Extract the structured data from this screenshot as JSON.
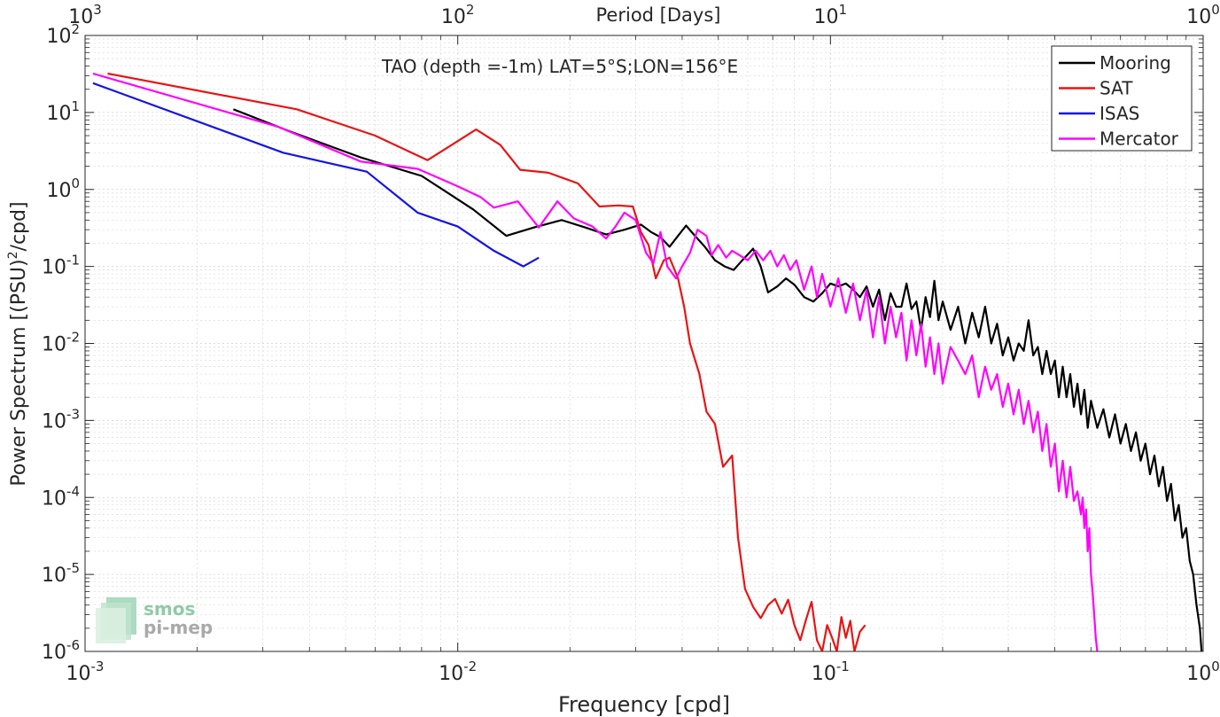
{
  "chart_data": {
    "type": "line",
    "title": "TAO (depth =-1m) LAT=5°S;LON=156°E",
    "xlabel": "Frequency [cpd]",
    "ylabel_main": "Power Spectrum [(PSU)",
    "ylabel_sup": "2",
    "ylabel_tail": "/cpd]",
    "top_xlabel": "Period [Days]",
    "x_scale": "log",
    "y_scale": "log",
    "xlim": [
      0.001,
      1
    ],
    "ylim": [
      1e-06,
      100
    ],
    "grid": true,
    "legend_position": "top-right",
    "x_ticks": [
      {
        "base": "10",
        "exp": "-3",
        "value": 0.001
      },
      {
        "base": "10",
        "exp": "-2",
        "value": 0.01
      },
      {
        "base": "10",
        "exp": "-1",
        "value": 0.1
      },
      {
        "base": "10",
        "exp": "0",
        "value": 1
      }
    ],
    "top_ticks": [
      {
        "base": "10",
        "exp": "3",
        "freq": 0.001
      },
      {
        "base": "10",
        "exp": "2",
        "freq": 0.01
      },
      {
        "base": "10",
        "exp": "1",
        "freq": 0.1
      },
      {
        "base": "10",
        "exp": "0",
        "freq": 1
      }
    ],
    "y_ticks": [
      {
        "base": "10",
        "exp": "2",
        "value": 100
      },
      {
        "base": "10",
        "exp": "1",
        "value": 10
      },
      {
        "base": "10",
        "exp": "0",
        "value": 1
      },
      {
        "base": "10",
        "exp": "-1",
        "value": 0.1
      },
      {
        "base": "10",
        "exp": "-2",
        "value": 0.01
      },
      {
        "base": "10",
        "exp": "-3",
        "value": 0.001
      },
      {
        "base": "10",
        "exp": "-4",
        "value": 0.0001
      },
      {
        "base": "10",
        "exp": "-5",
        "value": 1e-05
      },
      {
        "base": "10",
        "exp": "-6",
        "value": 1e-06
      }
    ],
    "series": [
      {
        "name": "Mooring",
        "color": "#000000",
        "points": [
          [
            0.0025,
            11
          ],
          [
            0.0035,
            5.8
          ],
          [
            0.0055,
            2.6
          ],
          [
            0.008,
            1.5
          ],
          [
            0.011,
            0.55
          ],
          [
            0.0135,
            0.25
          ],
          [
            0.016,
            0.32
          ],
          [
            0.019,
            0.4
          ],
          [
            0.022,
            0.32
          ],
          [
            0.025,
            0.26
          ],
          [
            0.028,
            0.3
          ],
          [
            0.031,
            0.35
          ],
          [
            0.033,
            0.28
          ],
          [
            0.035,
            0.24
          ],
          [
            0.037,
            0.18
          ],
          [
            0.039,
            0.25
          ],
          [
            0.041,
            0.34
          ],
          [
            0.043,
            0.26
          ],
          [
            0.046,
            0.18
          ],
          [
            0.049,
            0.12
          ],
          [
            0.052,
            0.1
          ],
          [
            0.055,
            0.09
          ],
          [
            0.058,
            0.12
          ],
          [
            0.062,
            0.17
          ],
          [
            0.065,
            0.1
          ],
          [
            0.068,
            0.046
          ],
          [
            0.072,
            0.055
          ],
          [
            0.076,
            0.07
          ],
          [
            0.08,
            0.058
          ],
          [
            0.085,
            0.04
          ],
          [
            0.09,
            0.035
          ],
          [
            0.095,
            0.045
          ],
          [
            0.1,
            0.06
          ],
          [
            0.105,
            0.055
          ],
          [
            0.11,
            0.06
          ],
          [
            0.115,
            0.05
          ],
          [
            0.12,
            0.04
          ],
          [
            0.125,
            0.055
          ],
          [
            0.13,
            0.03
          ],
          [
            0.135,
            0.05
          ],
          [
            0.14,
            0.02
          ],
          [
            0.145,
            0.045
          ],
          [
            0.15,
            0.03
          ],
          [
            0.155,
            0.03
          ],
          [
            0.16,
            0.06
          ],
          [
            0.165,
            0.028
          ],
          [
            0.17,
            0.035
          ],
          [
            0.175,
            0.015
          ],
          [
            0.18,
            0.04
          ],
          [
            0.185,
            0.022
          ],
          [
            0.19,
            0.065
          ],
          [
            0.195,
            0.02
          ],
          [
            0.2,
            0.035
          ],
          [
            0.21,
            0.015
          ],
          [
            0.22,
            0.03
          ],
          [
            0.23,
            0.01
          ],
          [
            0.24,
            0.025
          ],
          [
            0.25,
            0.012
          ],
          [
            0.26,
            0.03
          ],
          [
            0.27,
            0.01
          ],
          [
            0.28,
            0.018
          ],
          [
            0.29,
            0.007
          ],
          [
            0.3,
            0.012
          ],
          [
            0.31,
            0.006
          ],
          [
            0.32,
            0.01
          ],
          [
            0.33,
            0.008
          ],
          [
            0.34,
            0.02
          ],
          [
            0.35,
            0.007
          ],
          [
            0.36,
            0.009
          ],
          [
            0.37,
            0.004
          ],
          [
            0.38,
            0.008
          ],
          [
            0.39,
            0.004
          ],
          [
            0.4,
            0.006
          ],
          [
            0.41,
            0.002
          ],
          [
            0.42,
            0.005
          ],
          [
            0.43,
            0.002
          ],
          [
            0.44,
            0.004
          ],
          [
            0.45,
            0.0015
          ],
          [
            0.46,
            0.003
          ],
          [
            0.47,
            0.0012
          ],
          [
            0.48,
            0.0025
          ],
          [
            0.49,
            0.0008
          ],
          [
            0.5,
            0.0018
          ],
          [
            0.52,
            0.0008
          ],
          [
            0.54,
            0.0014
          ],
          [
            0.56,
            0.0006
          ],
          [
            0.58,
            0.0012
          ],
          [
            0.6,
            0.0005
          ],
          [
            0.62,
            0.0009
          ],
          [
            0.64,
            0.0004
          ],
          [
            0.66,
            0.0007
          ],
          [
            0.68,
            0.0003
          ],
          [
            0.7,
            0.0005
          ],
          [
            0.72,
            0.0002
          ],
          [
            0.74,
            0.00035
          ],
          [
            0.76,
            0.00014
          ],
          [
            0.78,
            0.00025
          ],
          [
            0.8,
            9e-05
          ],
          [
            0.82,
            0.00015
          ],
          [
            0.84,
            5e-05
          ],
          [
            0.86,
            8e-05
          ],
          [
            0.88,
            3e-05
          ],
          [
            0.9,
            4e-05
          ],
          [
            0.92,
            1.5e-05
          ],
          [
            0.94,
            1e-05
          ],
          [
            0.96,
            4e-06
          ],
          [
            0.98,
            2e-06
          ],
          [
            0.99,
            1e-06
          ]
        ]
      },
      {
        "name": "SAT",
        "color": "#e81414",
        "points": [
          [
            0.00115,
            32
          ],
          [
            0.0037,
            11
          ],
          [
            0.006,
            5
          ],
          [
            0.0083,
            2.4
          ],
          [
            0.0112,
            6
          ],
          [
            0.013,
            3.8
          ],
          [
            0.0147,
            1.8
          ],
          [
            0.0175,
            1.65
          ],
          [
            0.021,
            1.2
          ],
          [
            0.024,
            0.6
          ],
          [
            0.027,
            0.62
          ],
          [
            0.0295,
            0.6
          ],
          [
            0.031,
            0.28
          ],
          [
            0.0325,
            0.19
          ],
          [
            0.034,
            0.07
          ],
          [
            0.0357,
            0.12
          ],
          [
            0.037,
            0.13
          ],
          [
            0.039,
            0.07
          ],
          [
            0.0405,
            0.03
          ],
          [
            0.042,
            0.01
          ],
          [
            0.0445,
            0.004
          ],
          [
            0.0465,
            0.0013
          ],
          [
            0.049,
            0.0009
          ],
          [
            0.0515,
            0.00025
          ],
          [
            0.0545,
            0.00035
          ],
          [
            0.0565,
            3e-05
          ],
          [
            0.059,
            6.5e-06
          ],
          [
            0.062,
            3.8e-06
          ],
          [
            0.065,
            2.7e-06
          ],
          [
            0.068,
            4e-06
          ],
          [
            0.071,
            4.8e-06
          ],
          [
            0.074,
            3.1e-06
          ],
          [
            0.077,
            4.7e-06
          ],
          [
            0.08,
            2.2e-06
          ],
          [
            0.083,
            1.4e-06
          ],
          [
            0.086,
            2.6e-06
          ],
          [
            0.089,
            4.4e-06
          ],
          [
            0.092,
            1.4e-06
          ],
          [
            0.095,
            1e-06
          ],
          [
            0.098,
            2.2e-06
          ],
          [
            0.101,
            1.5e-06
          ],
          [
            0.104,
            1e-06
          ],
          [
            0.107,
            2.8e-06
          ],
          [
            0.11,
            1.5e-06
          ],
          [
            0.113,
            2.5e-06
          ],
          [
            0.116,
            1e-06
          ],
          [
            0.12,
            1.8e-06
          ],
          [
            0.124,
            2.2e-06
          ]
        ]
      },
      {
        "name": "ISAS",
        "color": "#1414e8",
        "points": [
          [
            0.00105,
            24
          ],
          [
            0.0034,
            3
          ],
          [
            0.0057,
            1.7
          ],
          [
            0.0078,
            0.5
          ],
          [
            0.01,
            0.33
          ],
          [
            0.0125,
            0.16
          ],
          [
            0.015,
            0.1
          ],
          [
            0.0165,
            0.13
          ]
        ]
      },
      {
        "name": "Mercator",
        "color": "#ff00ff",
        "points": [
          [
            0.00105,
            32
          ],
          [
            0.0033,
            6.5
          ],
          [
            0.0055,
            2.3
          ],
          [
            0.0078,
            1.85
          ],
          [
            0.01,
            1.1
          ],
          [
            0.0115,
            0.8
          ],
          [
            0.0125,
            0.58
          ],
          [
            0.0145,
            0.7
          ],
          [
            0.0165,
            0.32
          ],
          [
            0.0185,
            0.7
          ],
          [
            0.0205,
            0.42
          ],
          [
            0.023,
            0.33
          ],
          [
            0.025,
            0.23
          ],
          [
            0.0265,
            0.33
          ],
          [
            0.028,
            0.5
          ],
          [
            0.03,
            0.4
          ],
          [
            0.032,
            0.15
          ],
          [
            0.0335,
            0.11
          ],
          [
            0.035,
            0.28
          ],
          [
            0.0365,
            0.1
          ],
          [
            0.0385,
            0.07
          ],
          [
            0.04,
            0.1
          ],
          [
            0.042,
            0.15
          ],
          [
            0.044,
            0.3
          ],
          [
            0.0465,
            0.25
          ],
          [
            0.048,
            0.14
          ],
          [
            0.05,
            0.19
          ],
          [
            0.0525,
            0.13
          ],
          [
            0.0545,
            0.16
          ],
          [
            0.057,
            0.14
          ],
          [
            0.06,
            0.12
          ],
          [
            0.063,
            0.16
          ],
          [
            0.066,
            0.12
          ],
          [
            0.069,
            0.16
          ],
          [
            0.072,
            0.1
          ],
          [
            0.075,
            0.14
          ],
          [
            0.078,
            0.09
          ],
          [
            0.081,
            0.12
          ],
          [
            0.085,
            0.05
          ],
          [
            0.089,
            0.1
          ],
          [
            0.092,
            0.04
          ],
          [
            0.095,
            0.08
          ],
          [
            0.1,
            0.03
          ],
          [
            0.105,
            0.07
          ],
          [
            0.11,
            0.025
          ],
          [
            0.115,
            0.06
          ],
          [
            0.12,
            0.02
          ],
          [
            0.125,
            0.05
          ],
          [
            0.13,
            0.012
          ],
          [
            0.135,
            0.04
          ],
          [
            0.14,
            0.01
          ],
          [
            0.145,
            0.03
          ],
          [
            0.15,
            0.012
          ],
          [
            0.155,
            0.025
          ],
          [
            0.16,
            0.006
          ],
          [
            0.165,
            0.02
          ],
          [
            0.17,
            0.007
          ],
          [
            0.175,
            0.018
          ],
          [
            0.18,
            0.005
          ],
          [
            0.185,
            0.012
          ],
          [
            0.19,
            0.004
          ],
          [
            0.195,
            0.01
          ],
          [
            0.2,
            0.003
          ],
          [
            0.21,
            0.009
          ],
          [
            0.22,
            0.006
          ],
          [
            0.23,
            0.004
          ],
          [
            0.24,
            0.007
          ],
          [
            0.25,
            0.002
          ],
          [
            0.26,
            0.005
          ],
          [
            0.27,
            0.0025
          ],
          [
            0.28,
            0.004
          ],
          [
            0.29,
            0.0015
          ],
          [
            0.3,
            0.003
          ],
          [
            0.31,
            0.0012
          ],
          [
            0.32,
            0.0025
          ],
          [
            0.33,
            0.0009
          ],
          [
            0.34,
            0.0018
          ],
          [
            0.35,
            0.0007
          ],
          [
            0.36,
            0.0013
          ],
          [
            0.37,
            0.0004
          ],
          [
            0.38,
            0.0009
          ],
          [
            0.39,
            0.00025
          ],
          [
            0.4,
            0.0005
          ],
          [
            0.41,
            0.00012
          ],
          [
            0.42,
            0.0003
          ],
          [
            0.43,
            0.0001
          ],
          [
            0.44,
            0.00025
          ],
          [
            0.45,
            9e-05
          ],
          [
            0.46,
            0.00012
          ],
          [
            0.47,
            6e-05
          ],
          [
            0.475,
            0.0001
          ],
          [
            0.48,
            4e-05
          ],
          [
            0.485,
            7e-05
          ],
          [
            0.49,
            2e-05
          ],
          [
            0.495,
            4e-05
          ],
          [
            0.5,
            1e-05
          ],
          [
            0.505,
            6e-06
          ],
          [
            0.51,
            3e-06
          ],
          [
            0.515,
            1.5e-06
          ],
          [
            0.52,
            1e-06
          ]
        ]
      }
    ]
  },
  "logo": {
    "line1": "smos",
    "line2": "pi-mep"
  }
}
